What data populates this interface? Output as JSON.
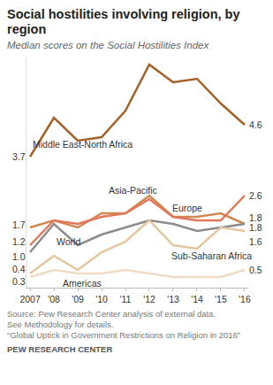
{
  "chart_data": {
    "type": "line",
    "title": "Social hostilities involving religion, by region",
    "subtitle": "Median scores on the Social Hostilities Index",
    "categories": [
      "2007",
      "'08",
      "'09",
      "'10",
      "'11",
      "'12",
      "'13",
      "'14",
      "'15",
      "'16"
    ],
    "series": [
      {
        "name": "Middle East-North Africa",
        "color": "#a2632b",
        "values": [
          3.7,
          4.8,
          4.15,
          4.25,
          5.0,
          6.3,
          5.8,
          5.9,
          5.2,
          4.6
        ],
        "value_labels": [
          "3.7",
          null,
          null,
          null,
          null,
          null,
          null,
          null,
          null,
          "4.6"
        ]
      },
      {
        "name": "Asia-Pacific",
        "color": "#cf8a52",
        "values": [
          1.7,
          1.9,
          1.7,
          2.1,
          2.1,
          2.6,
          2.0,
          2.0,
          2.1,
          1.8
        ],
        "value_labels": [
          "1.7",
          null,
          null,
          null,
          null,
          null,
          null,
          null,
          null,
          "1.8"
        ]
      },
      {
        "name": "Europe",
        "color": "#e2775c",
        "values": [
          1.2,
          1.9,
          1.8,
          2.0,
          2.1,
          2.5,
          2.0,
          1.9,
          1.9,
          2.6
        ],
        "value_labels": [
          "1.2",
          null,
          null,
          null,
          null,
          null,
          null,
          null,
          null,
          "2.6"
        ]
      },
      {
        "name": "World",
        "color": "#8c8c8c",
        "values": [
          1.0,
          1.8,
          1.2,
          1.5,
          1.7,
          1.9,
          1.8,
          1.6,
          1.7,
          1.8
        ],
        "value_labels": [
          "1.0",
          null,
          null,
          null,
          null,
          null,
          null,
          null,
          null,
          "1.8"
        ]
      },
      {
        "name": "Sub-Saharan Africa",
        "color": "#e3c6a0",
        "values": [
          0.4,
          0.9,
          0.5,
          1.0,
          1.3,
          1.9,
          1.2,
          1.1,
          1.7,
          1.6
        ],
        "value_labels": [
          "0.4",
          null,
          null,
          null,
          null,
          null,
          null,
          null,
          null,
          "1.6"
        ]
      },
      {
        "name": "Americas",
        "color": "#eedcc6",
        "values": [
          0.3,
          0.5,
          0.4,
          0.4,
          0.5,
          0.4,
          0.3,
          0.3,
          0.3,
          0.5
        ],
        "value_labels": [
          "0.3",
          null,
          null,
          null,
          null,
          null,
          null,
          null,
          null,
          "0.5"
        ]
      }
    ],
    "ylim": [
      0,
      6.5
    ],
    "yticks": [],
    "grid": false,
    "tick_labels": "x",
    "data_labels": true,
    "source": [
      "Source: Pew Research Center analysis of external data.",
      "See Methodology for details.",
      "“Global Uptick in Government Restrictions on Religion in 2016”"
    ],
    "credit": "PEW RESEARCH CENTER"
  }
}
